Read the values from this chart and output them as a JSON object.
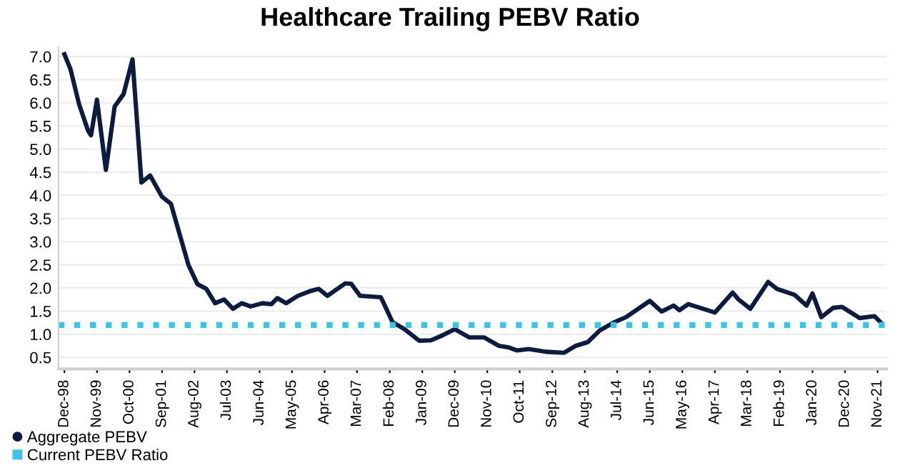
{
  "chart_data": {
    "type": "line",
    "title": "Healthcare Trailing PEBV Ratio",
    "x": [
      "1998-12",
      "1999-02",
      "1999-05",
      "1999-08",
      "1999-09",
      "1999-11",
      "2000-02",
      "2000-05",
      "2000-08",
      "2000-11",
      "2001-02",
      "2001-05",
      "2001-09",
      "2001-12",
      "2002-06",
      "2002-09",
      "2002-12",
      "2003-03",
      "2003-06",
      "2003-09",
      "2003-12",
      "2004-03",
      "2004-07",
      "2004-10",
      "2004-12",
      "2005-03",
      "2005-07",
      "2005-11",
      "2006-02",
      "2006-05",
      "2006-11",
      "2007-01",
      "2007-04",
      "2007-11",
      "2007-12",
      "2008-03",
      "2008-07",
      "2008-12",
      "2009-04",
      "2009-08",
      "2009-12",
      "2010-05",
      "2010-10",
      "2011-03",
      "2011-06",
      "2011-09",
      "2012-01",
      "2012-07",
      "2013-01",
      "2013-05",
      "2013-09",
      "2014-01",
      "2014-06",
      "2014-10",
      "2015-02",
      "2015-06",
      "2015-10",
      "2016-02",
      "2016-04",
      "2016-07",
      "2016-11",
      "2017-04",
      "2017-10",
      "2017-12",
      "2018-04",
      "2018-10",
      "2019-01",
      "2019-07",
      "2019-11",
      "2020-01",
      "2020-04",
      "2020-08",
      "2020-11",
      "2021-05",
      "2021-10",
      "2021-12"
    ],
    "series": [
      {
        "name": "Aggregate PEBV",
        "color": "#0d1b3e",
        "values": [
          7.05,
          6.73,
          5.97,
          5.4,
          5.3,
          6.07,
          4.55,
          5.92,
          6.19,
          6.94,
          4.28,
          4.43,
          3.97,
          3.82,
          2.49,
          2.08,
          1.98,
          1.67,
          1.75,
          1.55,
          1.67,
          1.6,
          1.67,
          1.65,
          1.78,
          1.67,
          1.83,
          1.93,
          1.98,
          1.83,
          2.1,
          2.09,
          1.83,
          1.8,
          1.67,
          1.26,
          1.11,
          0.86,
          0.87,
          0.98,
          1.11,
          0.93,
          0.93,
          0.75,
          0.72,
          0.65,
          0.68,
          0.62,
          0.6,
          0.75,
          0.83,
          1.08,
          1.26,
          1.37,
          1.55,
          1.72,
          1.49,
          1.62,
          1.52,
          1.65,
          1.57,
          1.47,
          1.9,
          1.75,
          1.55,
          2.13,
          1.98,
          1.85,
          1.62,
          1.88,
          1.37,
          1.57,
          1.59,
          1.35,
          1.39,
          1.26
        ]
      }
    ],
    "ref_lines": [
      {
        "axis": "y",
        "value": 1.2,
        "label": "Current PEBV Ratio",
        "color": "#3dc3e8",
        "line_style": "dotted"
      }
    ],
    "xlim": [
      "1998-10",
      "2022-02"
    ],
    "xticks": [
      {
        "value": "1998-12",
        "label": "Dec-98"
      },
      {
        "value": "1999-11",
        "label": "Nov-99"
      },
      {
        "value": "2000-10",
        "label": "Oct-00"
      },
      {
        "value": "2001-09",
        "label": "Sep-01"
      },
      {
        "value": "2002-08",
        "label": "Aug-02"
      },
      {
        "value": "2003-07",
        "label": "Jul-03"
      },
      {
        "value": "2004-06",
        "label": "Jun-04"
      },
      {
        "value": "2005-05",
        "label": "May-05"
      },
      {
        "value": "2006-04",
        "label": "Apr-06"
      },
      {
        "value": "2007-03",
        "label": "Mar-07"
      },
      {
        "value": "2008-02",
        "label": "Feb-08"
      },
      {
        "value": "2009-01",
        "label": "Jan-09"
      },
      {
        "value": "2009-12",
        "label": "Dec-09"
      },
      {
        "value": "2010-11",
        "label": "Nov-10"
      },
      {
        "value": "2011-10",
        "label": "Oct-11"
      },
      {
        "value": "2012-09",
        "label": "Sep-12"
      },
      {
        "value": "2013-08",
        "label": "Aug-13"
      },
      {
        "value": "2014-07",
        "label": "Jul-14"
      },
      {
        "value": "2015-06",
        "label": "Jun-15"
      },
      {
        "value": "2016-05",
        "label": "May-16"
      },
      {
        "value": "2017-04",
        "label": "Apr-17"
      },
      {
        "value": "2018-03",
        "label": "Mar-18"
      },
      {
        "value": "2019-02",
        "label": "Feb-19"
      },
      {
        "value": "2020-01",
        "label": "Jan-20"
      },
      {
        "value": "2020-12",
        "label": "Dec-20"
      },
      {
        "value": "2021-11",
        "label": "Nov-21"
      }
    ],
    "ylim": [
      0.25,
      7.2
    ],
    "yticks": [
      {
        "value": 0.5,
        "label": "0.5"
      },
      {
        "value": 1,
        "label": "1.0"
      },
      {
        "value": 1.5,
        "label": "1.5"
      },
      {
        "value": 2,
        "label": "2.0"
      },
      {
        "value": 2.5,
        "label": "2.5"
      },
      {
        "value": 3,
        "label": "3.0"
      },
      {
        "value": 3.5,
        "label": "3.5"
      },
      {
        "value": 4,
        "label": "4.0"
      },
      {
        "value": 4.5,
        "label": "4.5"
      },
      {
        "value": 5,
        "label": "5.0"
      },
      {
        "value": 5.5,
        "label": "5.5"
      },
      {
        "value": 6,
        "label": "6.0"
      },
      {
        "value": 6.5,
        "label": "6.5"
      },
      {
        "value": 7,
        "label": "7.0"
      }
    ],
    "grid": "y",
    "legend": "bottom left",
    "line_style": "solid",
    "marker": "none"
  }
}
